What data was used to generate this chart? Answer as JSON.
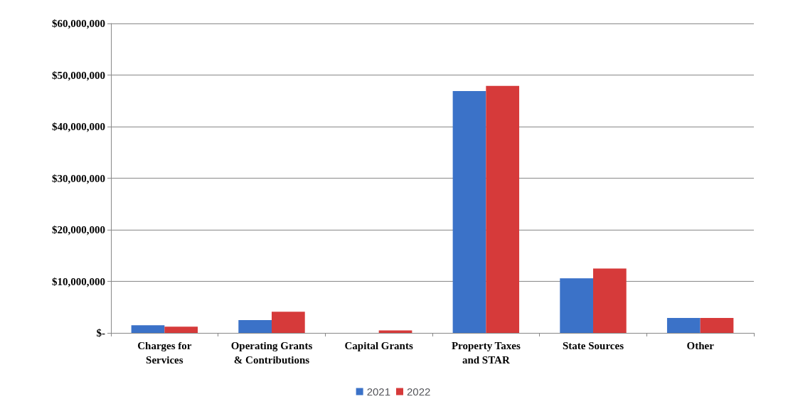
{
  "chart_data": {
    "type": "bar",
    "categories": [
      "Charges for\nServices",
      "Operating Grants\n& Contributions",
      "Capital Grants",
      "Property Taxes\nand STAR",
      "State Sources",
      "Other"
    ],
    "series": [
      {
        "name": "2021",
        "color": "#3b72c8",
        "values": [
          1500000,
          2500000,
          0,
          46900000,
          10600000,
          2900000
        ]
      },
      {
        "name": "2022",
        "color": "#d63a3a",
        "values": [
          1200000,
          4100000,
          500000,
          47900000,
          12500000,
          2900000
        ]
      }
    ],
    "ylim": [
      0,
      60000000
    ],
    "yticks": [
      {
        "value": 0,
        "label": "$-"
      },
      {
        "value": 10000000,
        "label": "$10,000,000"
      },
      {
        "value": 20000000,
        "label": "$20,000,000"
      },
      {
        "value": 30000000,
        "label": "$30,000,000"
      },
      {
        "value": 40000000,
        "label": "$40,000,000"
      },
      {
        "value": 50000000,
        "label": "$50,000,000"
      },
      {
        "value": 60000000,
        "label": "$60,000,000"
      }
    ],
    "grid": "y",
    "legend": "bottom"
  }
}
